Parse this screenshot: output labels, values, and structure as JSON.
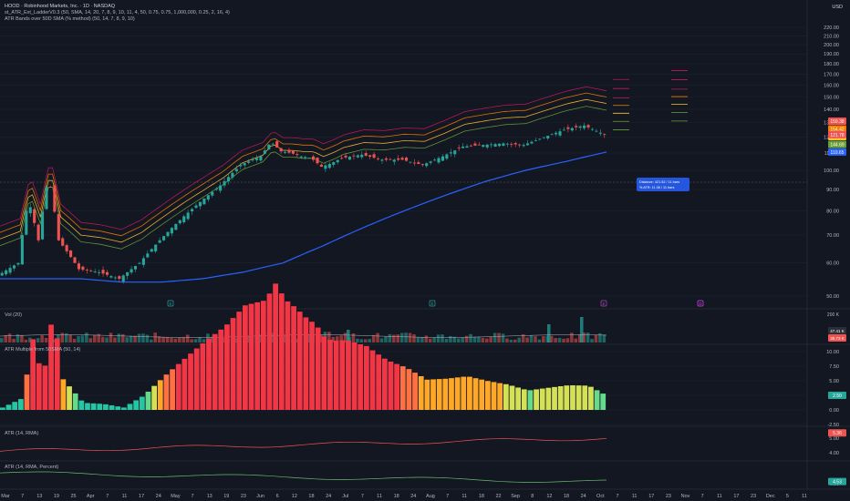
{
  "header": {
    "title": "HOOD · Robinhood Markets, Inc. · 1D · NASDAQ",
    "indicator_1": "st_ATR_Ext_LadderV0.3 (50, SMA, 14, 20, 7, 8, 9, 10, 11, 4, 50, 0.75, 0.75, 1,000,000, 0.25, 2, 16, 4)",
    "indicator_2": "ATR Bands over 50D SMA (% method) (50, 14, 7, 8, 9, 10)",
    "currency": "USD"
  },
  "colors": {
    "background": "#131722",
    "grid": "#1e2230",
    "up": "#26a69a",
    "down": "#ef5350",
    "sma": "#2962ff",
    "band_1": "#c2185b",
    "band_2": "#f57c00",
    "band_3": "#fbc02d",
    "band_4": "#689f38",
    "atr_line": "#ef5350",
    "atr_pct_line": "#66bb6a"
  },
  "chart_data": [
    {
      "type": "candlestick",
      "pane": "price",
      "y_scale": "log",
      "y_ticks": [
        "220.00",
        "210.00",
        "200.00",
        "190.00",
        "180.00",
        "170.00",
        "160.00",
        "150.00",
        "140.00",
        "130.00",
        "120.00",
        "110.00",
        "100.00",
        "90.00",
        "80.00",
        "70.00",
        "60.00",
        "50.00"
      ],
      "price_labels": [
        {
          "text": "159.38",
          "color": "#ef5350"
        },
        {
          "text": "154.42",
          "color": "#f57c00"
        },
        {
          "text": "149.56",
          "color": "#fbc02d"
        },
        {
          "text": "144.69",
          "color": "#689f38"
        },
        {
          "text": "121.78",
          "color": "#ef5350"
        },
        {
          "text": "110.65",
          "color": "#2962ff"
        }
      ],
      "tooltip_lines": [
        "Distance: 421.52 / 11 bars",
        "% ATR: 11.36 / 11 bars"
      ],
      "event_markers": [
        "E",
        "E",
        "E",
        "D"
      ],
      "series": [
        {
          "name": "50D SMA",
          "points": [
            [
              0,
              55
            ],
            [
              20,
              55
            ],
            [
              40,
              55
            ],
            [
              60,
              54
            ],
            [
              80,
              54
            ],
            [
              100,
              55
            ],
            [
              120,
              57
            ],
            [
              140,
              60
            ],
            [
              160,
              66
            ],
            [
              180,
              73
            ],
            [
              200,
              80
            ],
            [
              220,
              87
            ],
            [
              240,
              94
            ],
            [
              260,
              100
            ],
            [
              280,
              105
            ],
            [
              300,
              110.65
            ]
          ]
        },
        {
          "name": "Price",
          "points": [
            [
              0,
              56
            ],
            [
              10,
              60
            ],
            [
              15,
              85
            ],
            [
              20,
              68
            ],
            [
              25,
              97
            ],
            [
              30,
              68
            ],
            [
              40,
              58
            ],
            [
              50,
              57
            ],
            [
              60,
              55
            ],
            [
              70,
              60
            ],
            [
              80,
              68
            ],
            [
              90,
              76
            ],
            [
              100,
              84
            ],
            [
              110,
              92
            ],
            [
              120,
              103
            ],
            [
              130,
              108
            ],
            [
              135,
              117
            ],
            [
              140,
              111
            ],
            [
              145,
              110
            ],
            [
              150,
              108
            ],
            [
              155,
              107
            ],
            [
              160,
              102
            ],
            [
              165,
              104
            ],
            [
              170,
              107
            ],
            [
              180,
              109
            ],
            [
              190,
              106
            ],
            [
              200,
              106
            ],
            [
              210,
              103
            ],
            [
              220,
              108
            ],
            [
              230,
              114
            ],
            [
              240,
              115
            ],
            [
              250,
              116
            ],
            [
              260,
              115
            ],
            [
              270,
              120
            ],
            [
              280,
              125
            ],
            [
              290,
              128
            ],
            [
              300,
              121.78
            ]
          ]
        }
      ]
    },
    {
      "type": "bar",
      "pane": "volume",
      "label": "Vol (20)",
      "y_ticks": [
        "200 K"
      ],
      "value_labels": [
        "47.41 K",
        "35.73 K"
      ]
    },
    {
      "type": "bar",
      "pane": "atr_multiple",
      "label": "ATR Multiple from 50SMA (50, 14)",
      "y_ticks": [
        "10.00",
        "7.50",
        "5.00",
        "2.50",
        "0.00",
        "-2.50"
      ],
      "value_label": "2.50"
    },
    {
      "type": "line",
      "pane": "atr",
      "label": "ATR (14, RMA)",
      "y_ticks": [
        "5.00",
        "4.00"
      ],
      "value_label": "5.36"
    },
    {
      "type": "line",
      "pane": "atr_percent",
      "label": "ATR (14, RMA, Percent)",
      "y_ticks": [
        "4.00"
      ],
      "value_label": "4.53"
    },
    {
      "type": "axis",
      "pane": "time",
      "x_ticks": [
        "Mar",
        "7",
        "13",
        "19",
        "25",
        "Apr",
        "7",
        "11",
        "17",
        "24",
        "May",
        "7",
        "13",
        "19",
        "23",
        "Jun",
        "6",
        "12",
        "18",
        "24",
        "Jul",
        "7",
        "11",
        "18",
        "24",
        "Aug",
        "7",
        "11",
        "18",
        "22",
        "Sep",
        "8",
        "12",
        "18",
        "24",
        "Oct",
        "7",
        "11",
        "17",
        "23",
        "Nov",
        "7",
        "11",
        "17",
        "23",
        "Dec",
        "5",
        "11"
      ]
    }
  ]
}
